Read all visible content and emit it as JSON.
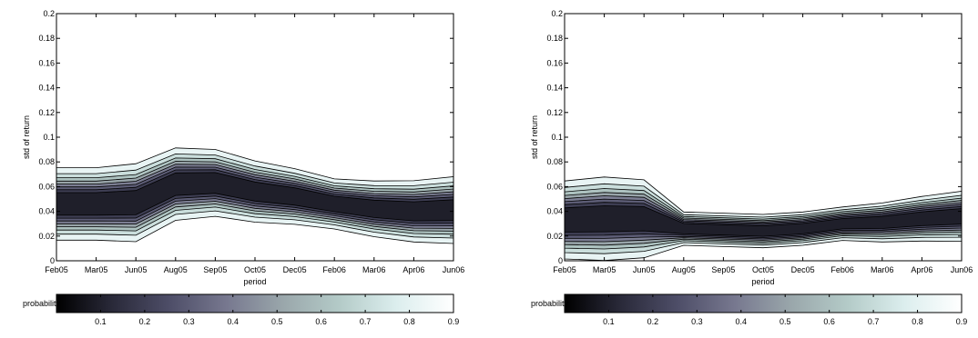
{
  "colormap": [
    "#000000",
    "#2a2a3a",
    "#4e4e68",
    "#77788f",
    "#9aa7ab",
    "#b4cbc8",
    "#dceeee",
    "#ffffff"
  ],
  "chart_data": [
    {
      "type": "contour",
      "xlabel": "period",
      "ylabel": "std of return",
      "x_categories": [
        "Feb05",
        "Mar05",
        "Jun05",
        "Aug05",
        "Sep05",
        "Oct05",
        "Dec05",
        "Feb06",
        "Mar06",
        "Apr06",
        "Jun06"
      ],
      "y_ticks": [
        "0",
        "0.02",
        "0.04",
        "0.06",
        "0.08",
        "0.1",
        "0.12",
        "0.14",
        "0.16",
        "0.18",
        "0.2"
      ],
      "ylim": [
        0,
        0.2
      ],
      "grid": false,
      "contour_levels": [
        0.1,
        0.2,
        0.3,
        0.4,
        0.5,
        0.6,
        0.7,
        0.8
      ],
      "density_center": [
        0.046,
        0.046,
        0.047,
        0.062,
        0.063,
        0.056,
        0.052,
        0.046,
        0.042,
        0.04,
        0.041
      ],
      "density_spread": [
        0.013,
        0.013,
        0.014,
        0.013,
        0.012,
        0.011,
        0.01,
        0.009,
        0.01,
        0.011,
        0.012
      ],
      "colorbar": {
        "label": "probability",
        "ticks": [
          "0.1",
          "0.2",
          "0.3",
          "0.4",
          "0.5",
          "0.6",
          "0.7",
          "0.8",
          "0.9"
        ]
      }
    },
    {
      "type": "contour",
      "xlabel": "period",
      "ylabel": "std of return",
      "x_categories": [
        "Feb05",
        "Mar05",
        "Jun05",
        "Aug05",
        "Sep05",
        "Oct05",
        "Dec05",
        "Feb06",
        "Mar06",
        "Apr06",
        "Jun06"
      ],
      "y_ticks": [
        "0",
        "0.02",
        "0.04",
        "0.06",
        "0.08",
        "0.1",
        "0.12",
        "0.14",
        "0.16",
        "0.18",
        "0.2"
      ],
      "ylim": [
        0,
        0.2
      ],
      "grid": false,
      "contour_levels": [
        0.1,
        0.2,
        0.3,
        0.4,
        0.5,
        0.6,
        0.7,
        0.8
      ],
      "density_center": [
        0.033,
        0.034,
        0.034,
        0.026,
        0.025,
        0.024,
        0.026,
        0.03,
        0.031,
        0.034,
        0.036
      ],
      "density_spread": [
        0.014,
        0.015,
        0.014,
        0.006,
        0.006,
        0.006,
        0.006,
        0.006,
        0.007,
        0.008,
        0.009
      ],
      "colorbar": {
        "label": "probability",
        "ticks": [
          "0.1",
          "0.2",
          "0.3",
          "0.4",
          "0.5",
          "0.6",
          "0.7",
          "0.8",
          "0.9"
        ]
      }
    }
  ]
}
